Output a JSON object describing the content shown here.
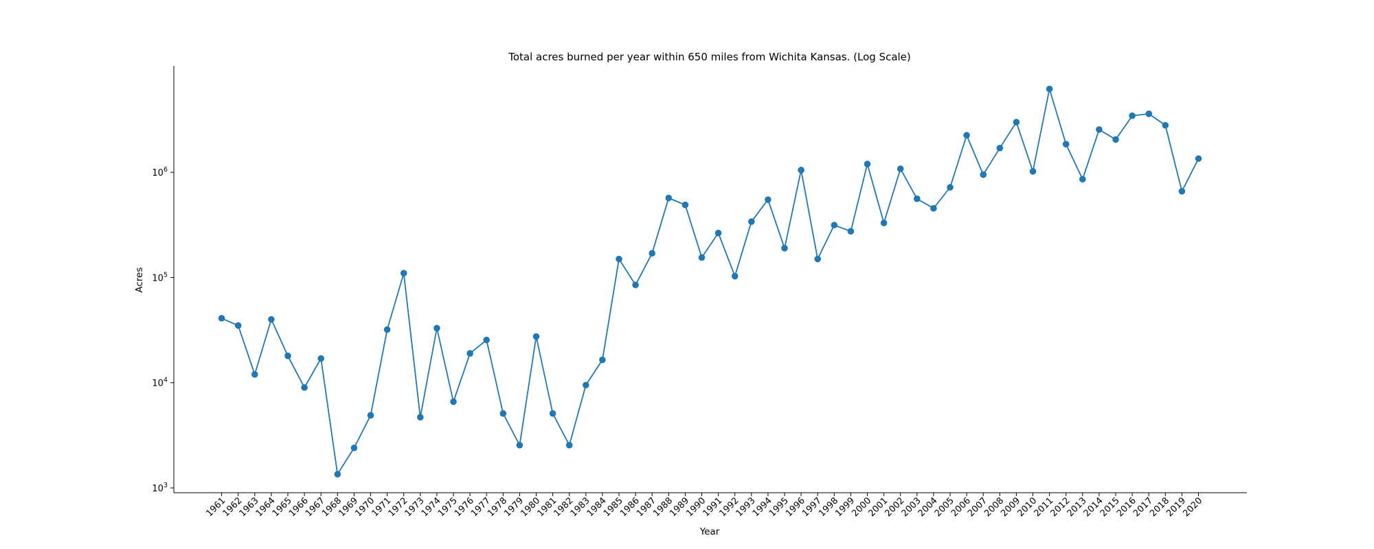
{
  "chart_data": {
    "type": "line",
    "title": "Total acres burned per year within 650 miles from Wichita Kansas. (Log Scale)",
    "xlabel": "Year",
    "ylabel": "Acres",
    "yscale": "log",
    "ylim": [
      1000,
      10000000
    ],
    "yticks": [
      {
        "value": 1000,
        "base": "10",
        "exp": "3"
      },
      {
        "value": 10000,
        "base": "10",
        "exp": "4"
      },
      {
        "value": 100000,
        "base": "10",
        "exp": "5"
      },
      {
        "value": 1000000,
        "base": "10",
        "exp": "6"
      }
    ],
    "grid": false,
    "color": "#1f77b4",
    "x": [
      1961,
      1962,
      1963,
      1964,
      1965,
      1966,
      1967,
      1968,
      1969,
      1970,
      1971,
      1972,
      1973,
      1974,
      1975,
      1976,
      1977,
      1978,
      1979,
      1980,
      1981,
      1982,
      1983,
      1984,
      1985,
      1986,
      1987,
      1988,
      1989,
      1990,
      1991,
      1992,
      1993,
      1994,
      1995,
      1996,
      1997,
      1998,
      1999,
      2000,
      2001,
      2002,
      2003,
      2004,
      2005,
      2006,
      2007,
      2008,
      2009,
      2010,
      2011,
      2012,
      2013,
      2014,
      2015,
      2016,
      2017,
      2018,
      2019,
      2020
    ],
    "y": [
      41000,
      35000,
      12000,
      40000,
      18000,
      9000,
      17000,
      1350,
      2400,
      4900,
      32000,
      110000,
      4700,
      33000,
      6600,
      19000,
      25500,
      5100,
      2550,
      27500,
      5100,
      2550,
      9500,
      16500,
      150000,
      85000,
      170000,
      570000,
      490000,
      155000,
      265000,
      103000,
      340000,
      550000,
      190000,
      1050000,
      150000,
      315000,
      275000,
      1200000,
      330000,
      1080000,
      560000,
      455000,
      720000,
      2250000,
      950000,
      1700000,
      3000000,
      1020000,
      6200000,
      1850000,
      860000,
      2550000,
      2050000,
      3450000,
      3600000,
      2800000,
      660000,
      1350000
    ]
  }
}
